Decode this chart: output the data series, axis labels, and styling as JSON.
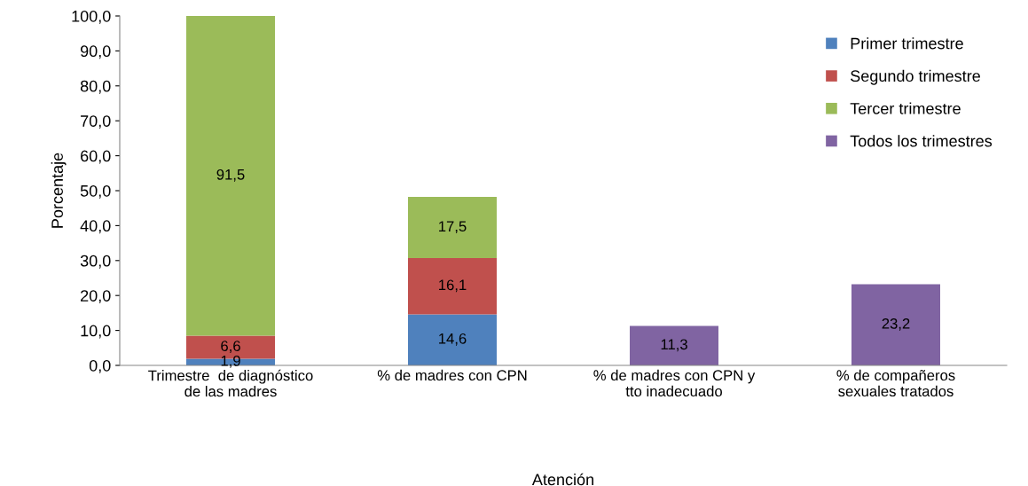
{
  "chart_data": {
    "type": "bar",
    "stacked": true,
    "xlabel": "Atención",
    "ylabel": "Porcentaje",
    "categories": [
      "Trimestre  de diagnóstico\nde las madres",
      "% de madres con CPN",
      "% de madres con CPN y\ntto inadecuado",
      "% de compañeros\nsexuales tratados"
    ],
    "series": [
      {
        "name": "Primer trimestre",
        "color": "#4f81bd",
        "values": [
          1.9,
          14.6,
          null,
          null
        ],
        "value_labels": [
          "1,9",
          "14,6",
          null,
          null
        ]
      },
      {
        "name": "Segundo trimestre",
        "color": "#c0504d",
        "values": [
          6.6,
          16.1,
          null,
          null
        ],
        "value_labels": [
          "6,6",
          "16,1",
          null,
          null
        ]
      },
      {
        "name": "Tercer trimestre",
        "color": "#9bbb59",
        "values": [
          91.5,
          17.5,
          null,
          null
        ],
        "value_labels": [
          "91,5",
          "17,5",
          null,
          null
        ]
      },
      {
        "name": "Todos los trimestres",
        "color": "#8064a2",
        "values": [
          null,
          null,
          11.3,
          23.2
        ],
        "value_labels": [
          null,
          null,
          "11,3",
          "23,2"
        ]
      }
    ],
    "ylim": [
      0,
      100
    ],
    "yticks": [
      {
        "value": 0,
        "label": "0,0"
      },
      {
        "value": 10,
        "label": "10,0"
      },
      {
        "value": 20,
        "label": "20,0"
      },
      {
        "value": 30,
        "label": "30,0"
      },
      {
        "value": 40,
        "label": "40,0"
      },
      {
        "value": 50,
        "label": "50,0"
      },
      {
        "value": 60,
        "label": "60,0"
      },
      {
        "value": 70,
        "label": "70,0"
      },
      {
        "value": 80,
        "label": "80,0"
      },
      {
        "value": 90,
        "label": "90,0"
      },
      {
        "value": 100,
        "label": "100,0"
      }
    ],
    "grid": false,
    "legend": "top right"
  }
}
